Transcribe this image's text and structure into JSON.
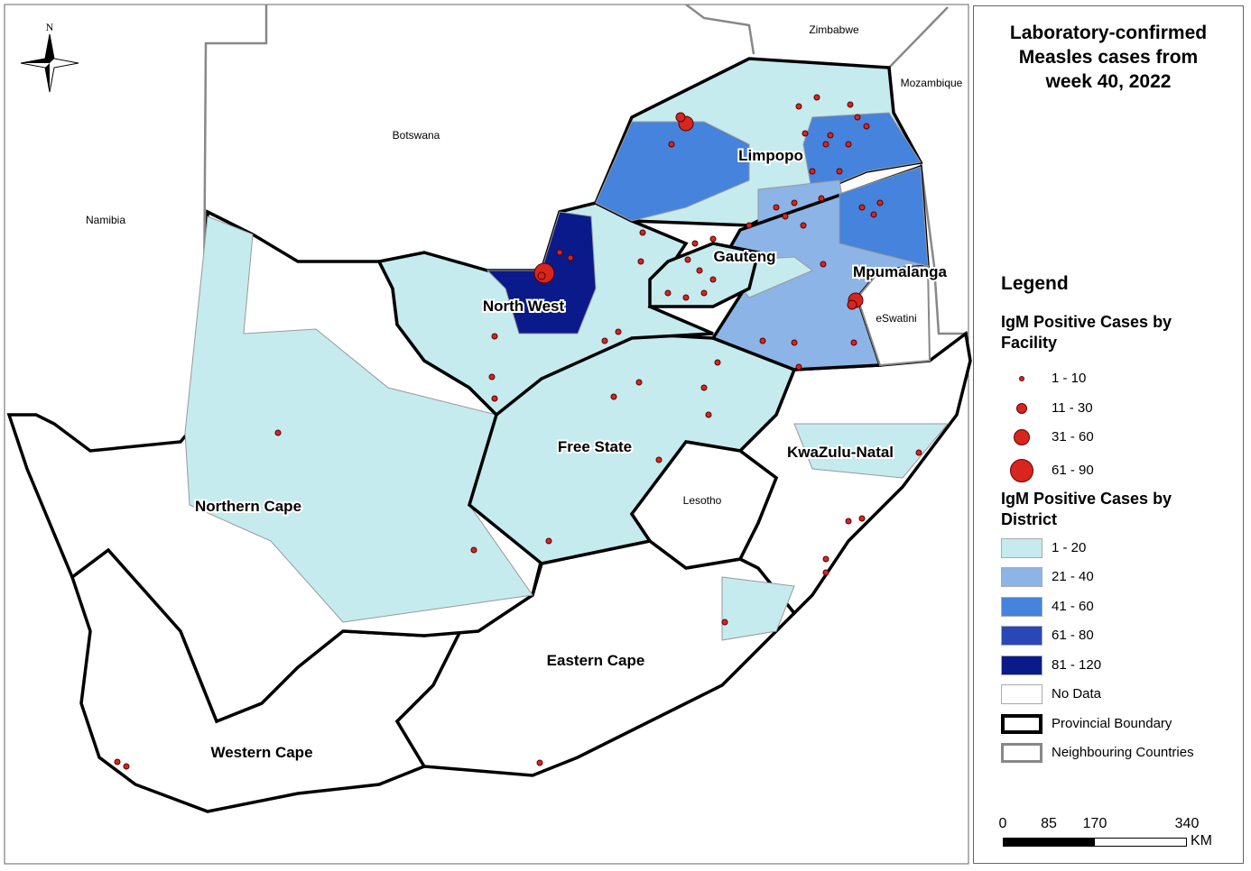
{
  "title": [
    "Laboratory-confirmed",
    "Measles cases from",
    "week 40, 2022"
  ],
  "compass": "N",
  "countries": [
    "Zimbabwe",
    "Mozambique",
    "Botswana",
    "Namibia",
    "eSwatini",
    "Lesotho"
  ],
  "provinces": [
    "Limpopo",
    "Gauteng",
    "Mpumalanga",
    "North West",
    "Free State",
    "KwaZulu-Natal",
    "Northern Cape",
    "Eastern Cape",
    "Western Cape"
  ],
  "legend": {
    "title": "Legend",
    "facility": {
      "title": "IgM Positive Cases by Facility",
      "items": [
        "1 - 10",
        "11 - 30",
        "31 - 60",
        "61 - 90"
      ]
    },
    "district": {
      "title": "IgM Positive Cases by District",
      "items": [
        {
          "label": "1 - 20",
          "color": "#c5ebee"
        },
        {
          "label": "21 - 40",
          "color": "#8db4e6"
        },
        {
          "label": "41 - 60",
          "color": "#4683dc"
        },
        {
          "label": "61 - 80",
          "color": "#2a47b8"
        },
        {
          "label": "81 - 120",
          "color": "#0b1a8a"
        },
        {
          "label": "No Data",
          "color": "#ffffff"
        }
      ]
    },
    "boundaries": [
      "Provincial Boundary",
      "Neighbouring Countries"
    ]
  },
  "scale_bar": {
    "ticks": [
      0,
      85,
      170,
      340
    ],
    "unit": "KM"
  }
}
